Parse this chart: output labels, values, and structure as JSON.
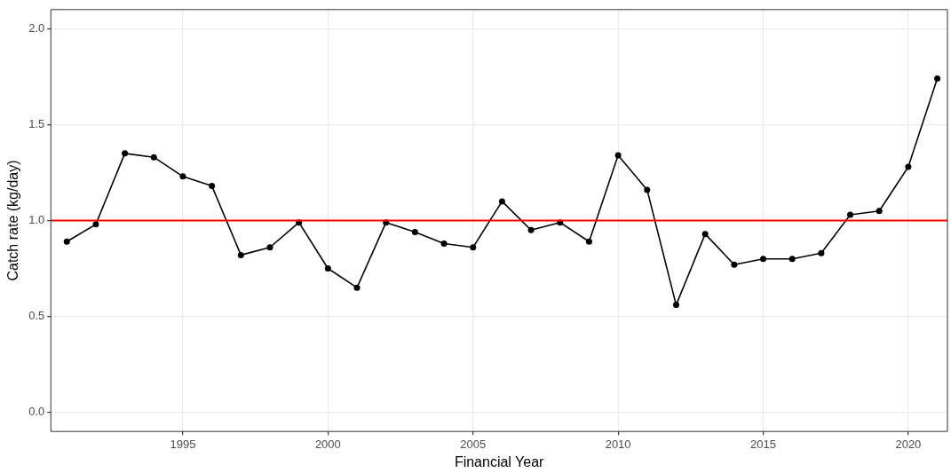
{
  "chart_data": {
    "type": "line",
    "xlabel": "Financial Year",
    "ylabel": "Catch rate (kg/day)",
    "x": [
      1991,
      1992,
      1993,
      1994,
      1995,
      1996,
      1997,
      1998,
      1999,
      2000,
      2001,
      2002,
      2003,
      2004,
      2005,
      2006,
      2007,
      2008,
      2009,
      2010,
      2011,
      2012,
      2013,
      2014,
      2015,
      2016,
      2017,
      2018,
      2019,
      2020,
      2021
    ],
    "series": [
      {
        "color": "#000000",
        "values": [
          0.89,
          0.98,
          1.35,
          1.33,
          1.23,
          1.18,
          0.82,
          0.86,
          0.99,
          0.75,
          0.65,
          0.99,
          0.94,
          0.88,
          0.86,
          1.1,
          0.95,
          0.99,
          0.89,
          1.34,
          1.16,
          0.56,
          0.93,
          0.77,
          0.8,
          0.8,
          0.83,
          1.03,
          1.05,
          1.28,
          1.74
        ]
      }
    ],
    "xlim": [
      1990.45,
      2021.35
    ],
    "xticks": [
      1995,
      2000,
      2005,
      2010,
      2015,
      2020
    ],
    "ylim": [
      -0.1,
      2.1
    ],
    "yticks": [
      {
        "value": 0,
        "label": "0.0"
      },
      0.5,
      {
        "value": 1,
        "label": "1.0"
      },
      1.5,
      {
        "value": 2,
        "label": "2.0"
      }
    ],
    "ref_lines": [
      {
        "axis": "y",
        "value": 1,
        "color": "#ff0000"
      }
    ],
    "grid": true,
    "legend": false,
    "marker": "circle",
    "line_style": "solid"
  }
}
